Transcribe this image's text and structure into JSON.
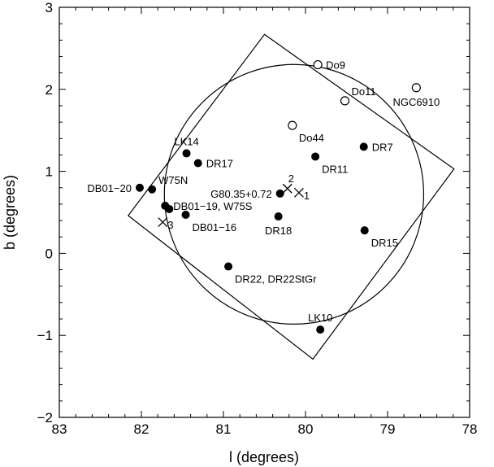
{
  "chart_data": {
    "type": "scatter",
    "title": "",
    "xlabel": "l (degrees)",
    "ylabel": "b (degrees)",
    "xlim": [
      83,
      78
    ],
    "ylim": [
      -2,
      3
    ],
    "x_axis_reversed": true,
    "x_ticks": [
      83,
      82,
      81,
      80,
      79,
      78
    ],
    "y_ticks": [
      -2,
      -1,
      0,
      1,
      2,
      3
    ],
    "x_tick_labels": [
      "83",
      "82",
      "81",
      "80",
      "79",
      "78"
    ],
    "y_tick_labels": [
      "−2",
      "−1",
      "0",
      "1",
      "2",
      "3"
    ],
    "grid": false,
    "rectangle": [
      [
        80.5,
        2.67
      ],
      [
        78.19,
        1.03
      ],
      [
        79.91,
        -1.29
      ],
      [
        82.16,
        0.46
      ]
    ],
    "circle": {
      "center": [
        80.14,
        0.72
      ],
      "radius_deg": 1.58
    },
    "filled_points": [
      {
        "x": 82.02,
        "y": 0.8,
        "label": "DB01−20",
        "pos": "left"
      },
      {
        "x": 81.87,
        "y": 0.78,
        "label": "W75N",
        "pos": "upper-right"
      },
      {
        "x": 81.71,
        "y": 0.58,
        "label": "DB01−19, W75S",
        "pos": "right"
      },
      {
        "x": 81.66,
        "y": 0.54,
        "label": "",
        "pos": "none"
      },
      {
        "x": 81.46,
        "y": 0.47,
        "label": "DB01−16",
        "pos": "lower-right"
      },
      {
        "x": 81.45,
        "y": 1.22,
        "label": "LK14",
        "pos": "above"
      },
      {
        "x": 81.31,
        "y": 1.1,
        "label": "DR17",
        "pos": "right"
      },
      {
        "x": 80.94,
        "y": -0.16,
        "label": "DR22, DR22StGr",
        "pos": "lower-right"
      },
      {
        "x": 80.31,
        "y": 0.73,
        "label": "G80.35+0.72",
        "pos": "left"
      },
      {
        "x": 80.33,
        "y": 0.45,
        "label": "DR18",
        "pos": "below"
      },
      {
        "x": 79.88,
        "y": 1.18,
        "label": "DR11",
        "pos": "lower-right"
      },
      {
        "x": 79.29,
        "y": 1.3,
        "label": "DR7",
        "pos": "right"
      },
      {
        "x": 79.28,
        "y": 0.28,
        "label": "DR15",
        "pos": "lower-right"
      },
      {
        "x": 79.82,
        "y": -0.93,
        "label": "LK10",
        "pos": "above"
      }
    ],
    "open_points": [
      {
        "x": 79.85,
        "y": 2.3,
        "label": "Do9",
        "pos": "right"
      },
      {
        "x": 79.52,
        "y": 1.86,
        "label": "Do11",
        "pos": "upper-right"
      },
      {
        "x": 80.16,
        "y": 1.56,
        "label": "Do44",
        "pos": "lower-right"
      },
      {
        "x": 78.65,
        "y": 2.02,
        "label": "NGC6910",
        "pos": "below"
      }
    ],
    "cross_markers": [
      {
        "x": 80.22,
        "y": 0.79,
        "label": "2"
      },
      {
        "x": 80.08,
        "y": 0.74,
        "label": "1"
      },
      {
        "x": 81.74,
        "y": 0.38,
        "label": "3"
      }
    ]
  }
}
